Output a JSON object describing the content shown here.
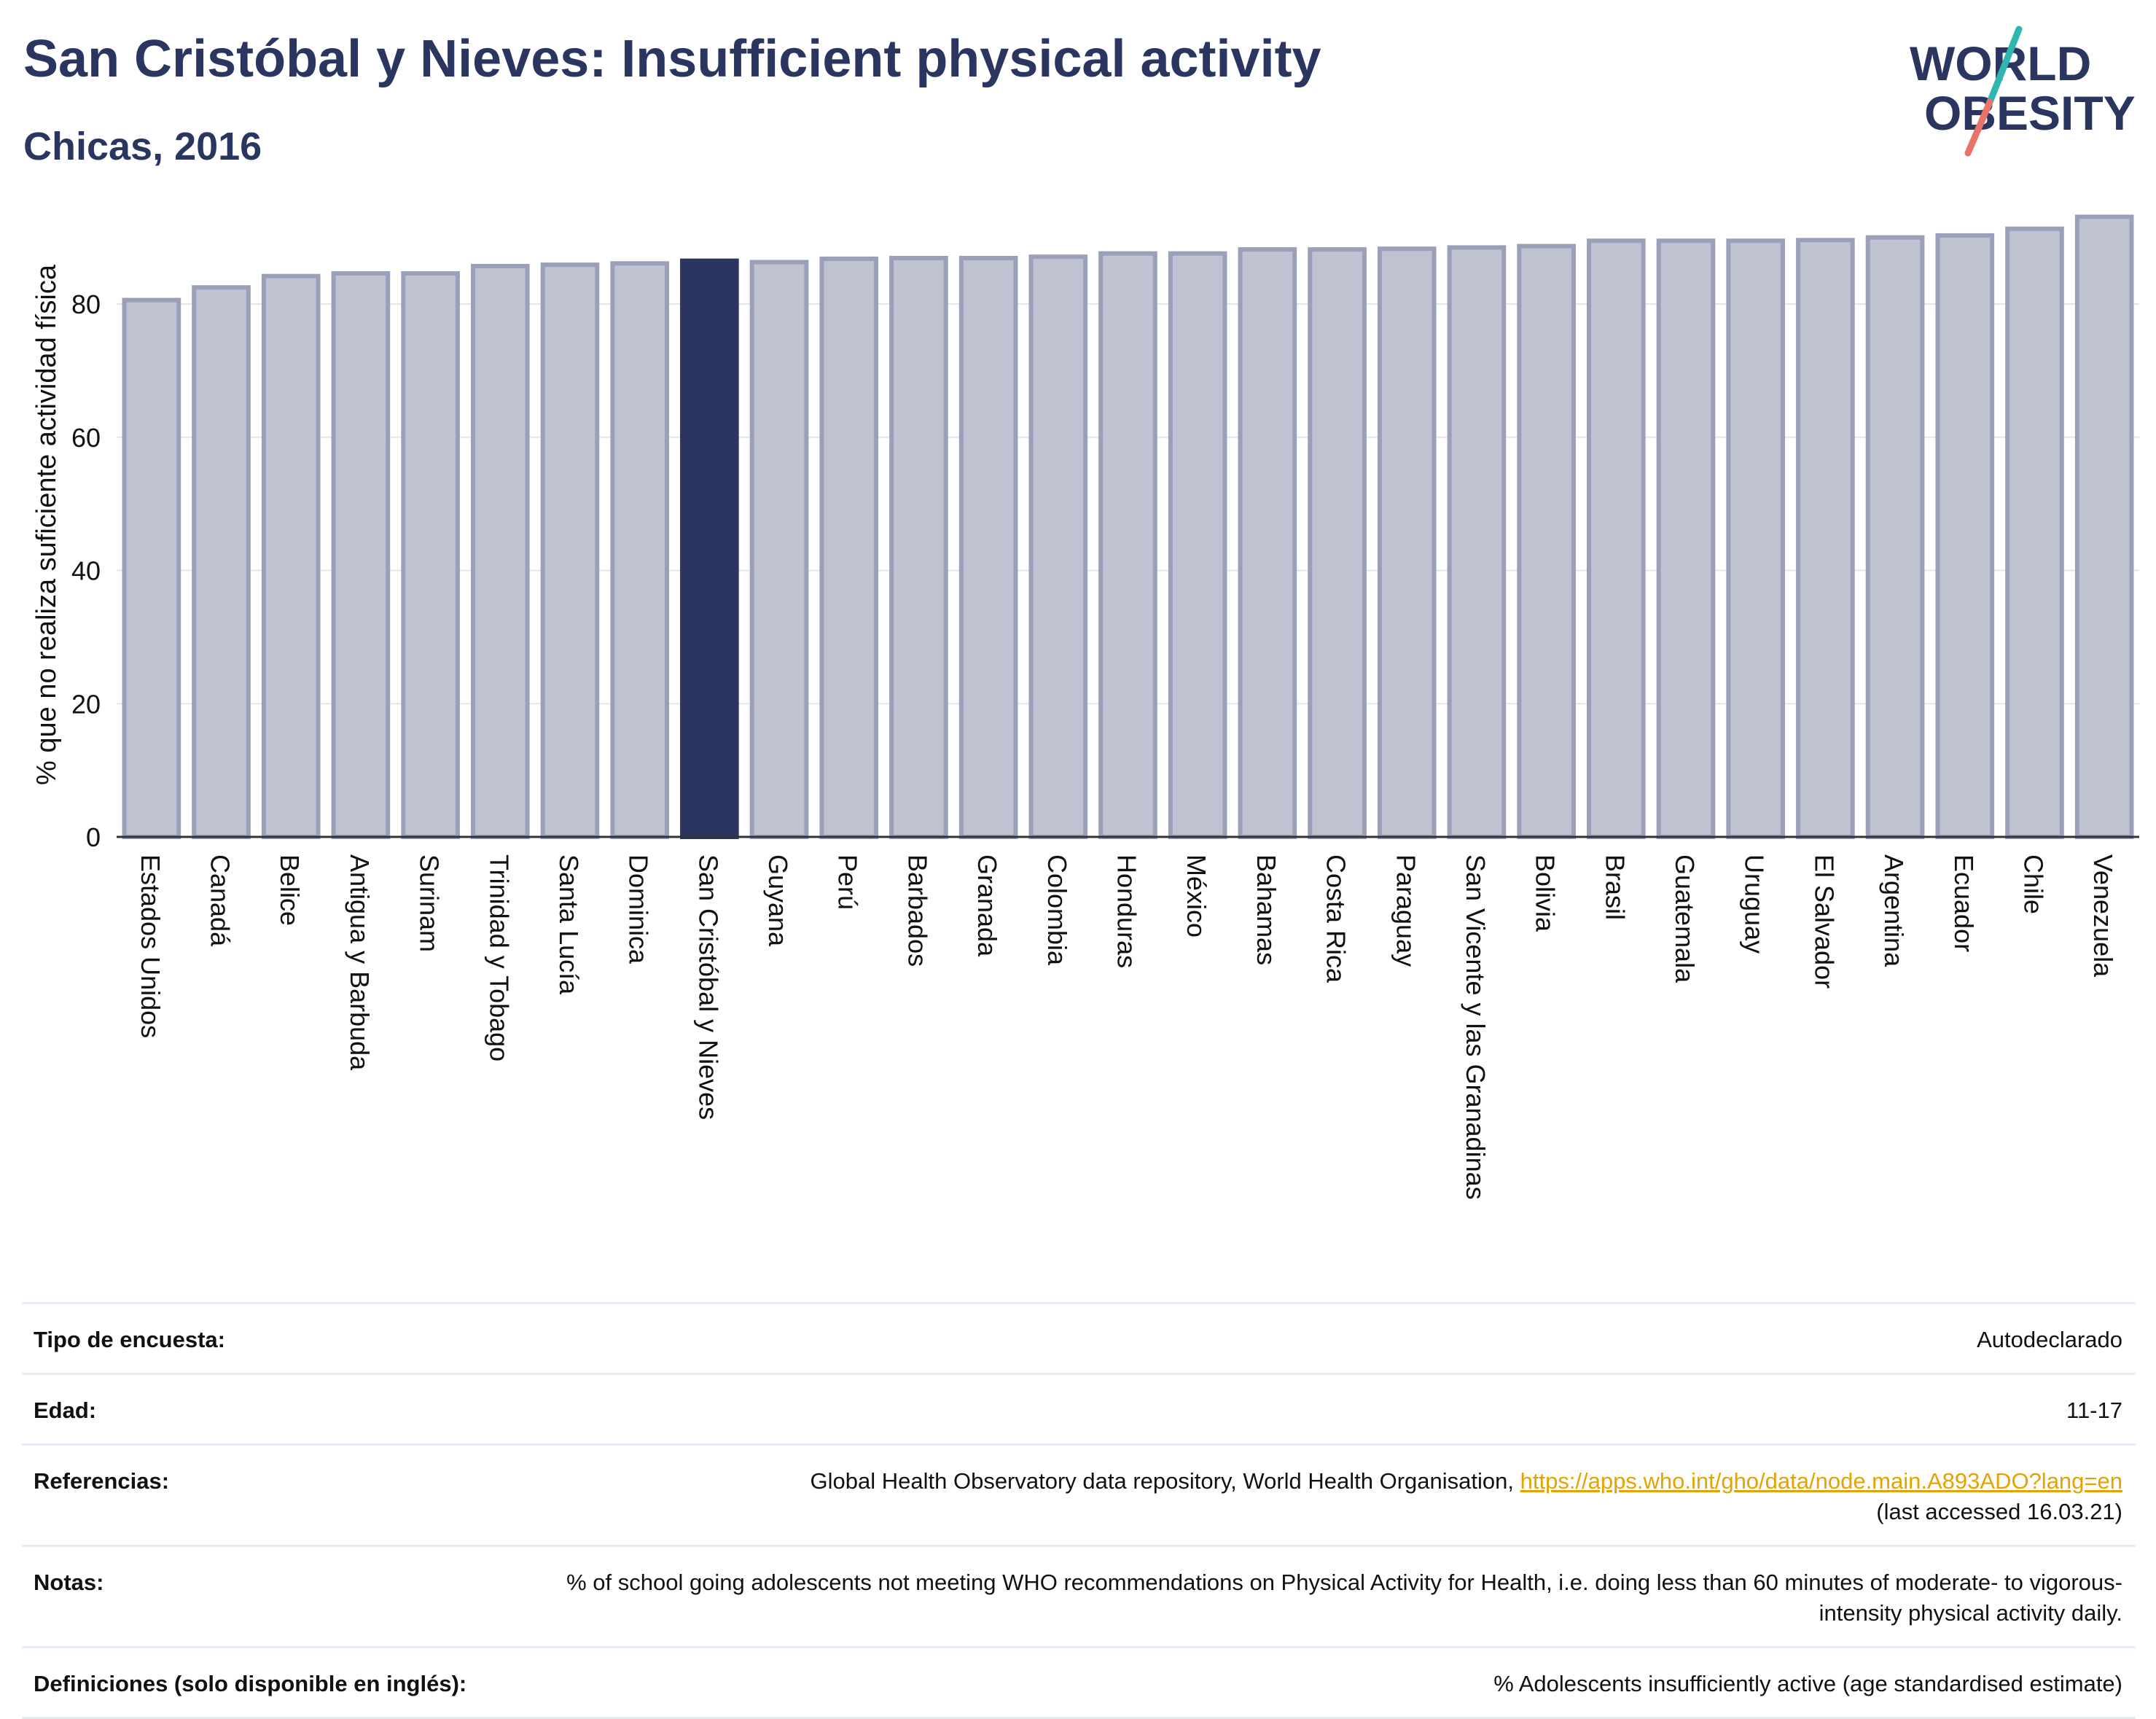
{
  "header": {
    "title": "San Cristóbal y Nieves: Insufficient physical activity",
    "subtitle": "Chicas, 2016"
  },
  "logo": {
    "line1": "WORLD",
    "line2": "OBESITY"
  },
  "colors": {
    "title": "#2a3560",
    "bar": "#bfc2d0",
    "bar_outline": "#9aa0ba",
    "highlight": "#2a3560",
    "link": "#e8a200",
    "logo_teal": "#2fb6b0",
    "logo_coral": "#e8736a"
  },
  "chart_data": {
    "type": "bar",
    "ylabel": "% que no realiza suficiente actividad física",
    "ylim": [
      0,
      95
    ],
    "yticks": [
      0,
      20,
      40,
      60,
      80
    ],
    "grid": true,
    "highlight": "San Cristóbal y Nieves",
    "categories": [
      "Estados Unidos",
      "Canadá",
      "Belice",
      "Antigua y Barbuda",
      "Surinam",
      "Trinidad y Tobago",
      "Santa Lucía",
      "Dominica",
      "San Cristóbal y Nieves",
      "Guyana",
      "Perú",
      "Barbados",
      "Granada",
      "Colombia",
      "Honduras",
      "México",
      "Bahamas",
      "Costa Rica",
      "Paraguay",
      "San Vicente y las Granadinas",
      "Bolivia",
      "Brasil",
      "Guatemala",
      "Uruguay",
      "El Salvador",
      "Argentina",
      "Ecuador",
      "Chile",
      "Venezuela"
    ],
    "values": [
      80.6,
      82.5,
      84.2,
      84.6,
      84.6,
      85.7,
      85.9,
      86.1,
      86.5,
      86.3,
      86.8,
      86.9,
      86.9,
      87.1,
      87.6,
      87.6,
      88.2,
      88.2,
      88.3,
      88.5,
      88.7,
      89.5,
      89.5,
      89.5,
      89.6,
      90.0,
      90.3,
      91.3,
      93.1
    ]
  },
  "info": {
    "survey_label": "Tipo de encuesta:",
    "survey_value": "Autodeclarado",
    "age_label": "Edad:",
    "age_value": "11-17",
    "refs_label": "Referencias:",
    "refs_text": "Global Health Observatory data repository, World Health Organisation, ",
    "refs_link": "https://apps.who.int/gho/data/node.main.A893ADO?lang=en",
    "refs_accessed": "(last accessed 16.03.21)",
    "notes_label": "Notas:",
    "notes_value": "% of school going adolescents not meeting WHO recommendations on Physical Activity for Health, i.e. doing less than 60 minutes of moderate- to vigorous-intensity physical activity daily.",
    "defs_label": "Definiciones (solo disponible en inglés):",
    "defs_value": "% Adolescents insufficiently active (age standardised estimate)"
  }
}
